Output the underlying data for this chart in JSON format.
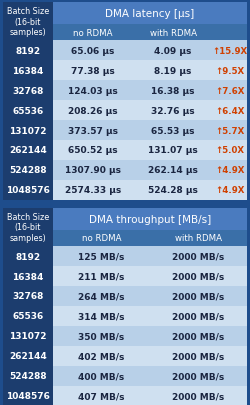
{
  "latency_header": "DMA latency [µs]",
  "throughput_header": "DMA throughput [MB/s]",
  "batch_label": "Batch Size\n(16-bit\nsamples)",
  "col_no_rdma": "no RDMA",
  "col_with_rdma": "with RDMA",
  "batch_sizes": [
    "8192",
    "16384",
    "32768",
    "65536",
    "131072",
    "262144",
    "524288",
    "1048576"
  ],
  "latency_no_rdma": [
    "65.06 µs",
    "77.38 µs",
    "124.03 µs",
    "208.26 µs",
    "373.57 µs",
    "650.52 µs",
    "1307.90 µs",
    "2574.33 µs"
  ],
  "latency_with_rdma": [
    "4.09 µs",
    "8.19 µs",
    "16.38 µs",
    "32.76 µs",
    "65.53 µs",
    "131.07 µs",
    "262.14 µs",
    "524.28 µs"
  ],
  "latency_ratio": [
    "↑15.9X",
    "↑9.5X",
    "↑7.6X",
    "↑6.4X",
    "↑5.7X",
    "↑5.0X",
    "↑4.9X",
    "↑4.9X"
  ],
  "throughput_no_rdma": [
    "125 MB/s",
    "211 MB/s",
    "264 MB/s",
    "314 MB/s",
    "350 MB/s",
    "402 MB/s",
    "400 MB/s",
    "407 MB/s"
  ],
  "throughput_with_rdma": [
    "2000 MB/s",
    "2000 MB/s",
    "2000 MB/s",
    "2000 MB/s",
    "2000 MB/s",
    "2000 MB/s",
    "2000 MB/s",
    "2000 MB/s"
  ],
  "color_dark_blue": "#1c3d6e",
  "color_mid_blue": "#3a6fa8",
  "color_header_blue": "#4a7bbf",
  "color_row_odd": "#b8d0e8",
  "color_row_even": "#cfe0f0",
  "color_bg": "#1e4d8c",
  "color_text_dark": "#1a2540",
  "color_ratio": "#d04000"
}
